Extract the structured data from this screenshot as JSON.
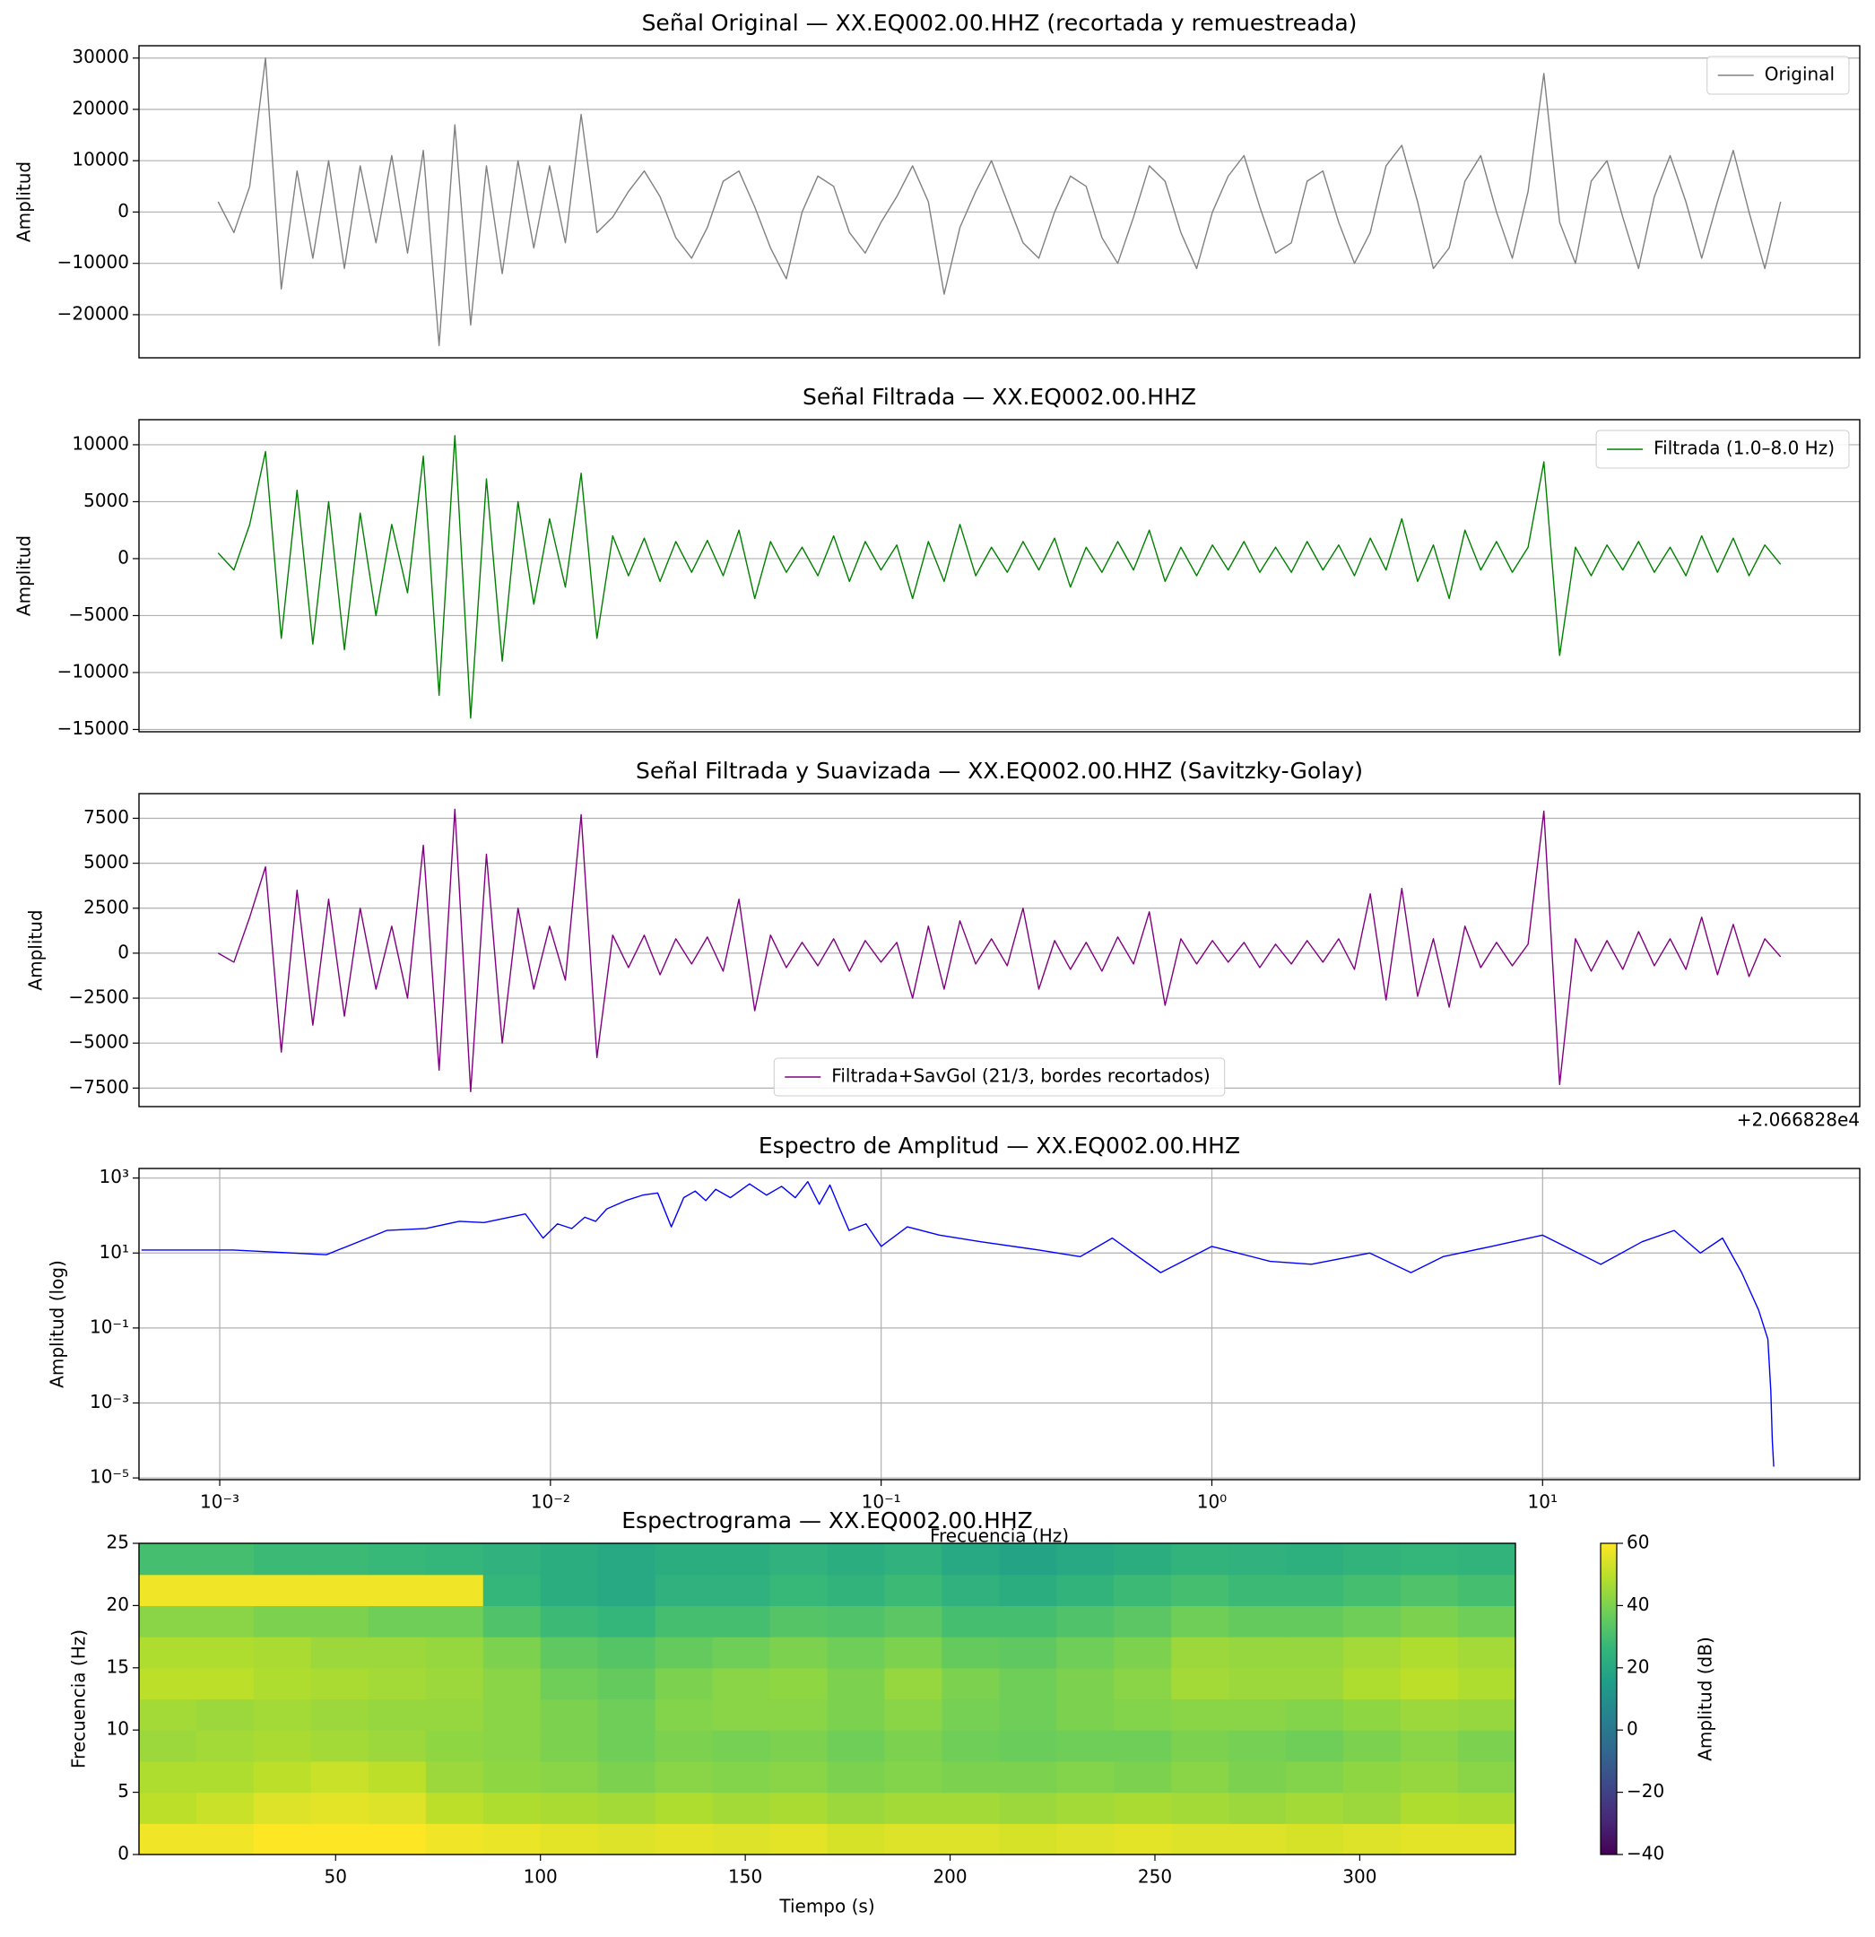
{
  "chart_data": [
    {
      "type": "line",
      "title": "Señal Original — XX.EQ002.00.HHZ (recortada y remuestreada)",
      "ylabel": "Amplitud",
      "ylim": [
        -28400,
        32400
      ],
      "yticks": [
        30000,
        20000,
        10000,
        0,
        {
          "value": -10000,
          "label": "−10000"
        },
        {
          "value": -20000,
          "label": "−20000"
        }
      ],
      "grid": true,
      "legend": "upper right",
      "series": [
        {
          "name": "Original",
          "color": "#808080",
          "values": [
            2000,
            -4000,
            5000,
            30000,
            -15000,
            8000,
            -9000,
            10000,
            -11000,
            9000,
            -6000,
            11000,
            -8000,
            12000,
            -26000,
            17000,
            -22000,
            9000,
            -12000,
            10000,
            -7000,
            9000,
            -6000,
            19000,
            -4000,
            -1000,
            4000,
            8000,
            3000,
            -5000,
            -9000,
            -3000,
            6000,
            8000,
            1000,
            -7000,
            -13000,
            0,
            7000,
            5000,
            -4000,
            -8000,
            -2000,
            3000,
            9000,
            2000,
            -16000,
            -3000,
            4000,
            10000,
            2000,
            -6000,
            -9000,
            0,
            7000,
            5000,
            -5000,
            -10000,
            -1000,
            9000,
            6000,
            -4000,
            -11000,
            0,
            7000,
            11000,
            1000,
            -8000,
            -6000,
            6000,
            8000,
            -2000,
            -10000,
            -4000,
            9000,
            13000,
            2000,
            -11000,
            -7000,
            6000,
            11000,
            0,
            -9000,
            4000,
            27000,
            -2000,
            -10000,
            6000,
            10000,
            -1000,
            -11000,
            3000,
            11000,
            2000,
            -9000,
            2000,
            12000,
            0,
            -11000,
            2000
          ]
        }
      ]
    },
    {
      "type": "line",
      "title": "Señal Filtrada — XX.EQ002.00.HHZ",
      "ylabel": "Amplitud",
      "ylim": [
        -15200,
        12200
      ],
      "yticks": [
        10000,
        5000,
        0,
        {
          "value": -5000,
          "label": "−5000"
        },
        {
          "value": -10000,
          "label": "−10000"
        },
        {
          "value": -15000,
          "label": "−15000"
        }
      ],
      "grid": true,
      "legend": "upper right",
      "series": [
        {
          "name": "Filtrada (1.0–8.0 Hz)",
          "color": "#008000",
          "values": [
            500,
            -1000,
            3000,
            9400,
            -7000,
            6000,
            -7500,
            5000,
            -8000,
            4000,
            -5000,
            3000,
            -3000,
            9000,
            -12000,
            10800,
            -14000,
            7000,
            -9000,
            5000,
            -4000,
            3500,
            -2500,
            7500,
            -7000,
            2000,
            -1500,
            1800,
            -2000,
            1500,
            -1200,
            1600,
            -1500,
            2500,
            -3500,
            1500,
            -1200,
            1000,
            -1500,
            2000,
            -2000,
            1500,
            -1000,
            1200,
            -3500,
            1500,
            -2000,
            3000,
            -1500,
            1000,
            -1200,
            1500,
            -1000,
            1800,
            -2500,
            1000,
            -1200,
            1500,
            -1000,
            2500,
            -2000,
            1000,
            -1500,
            1200,
            -1000,
            1500,
            -1200,
            1000,
            -1200,
            1500,
            -1000,
            1200,
            -1500,
            1800,
            -1000,
            3500,
            -2000,
            1200,
            -3500,
            2500,
            -1000,
            1500,
            -1200,
            1000,
            8500,
            -8500,
            1000,
            -1500,
            1200,
            -1000,
            1500,
            -1200,
            1000,
            -1500,
            2000,
            -1200,
            1800,
            -1500,
            1200,
            -500
          ]
        }
      ]
    },
    {
      "type": "line",
      "title": "Señal Filtrada y Suavizada — XX.EQ002.00.HHZ (Savitzky-Golay)",
      "ylabel": "Amplitud",
      "ylim": [
        -8530,
        8870
      ],
      "yticks": [
        7500,
        5000,
        2500,
        0,
        {
          "value": -2500,
          "label": "−2500"
        },
        {
          "value": -5000,
          "label": "−5000"
        },
        {
          "value": -7500,
          "label": "−7500"
        }
      ],
      "grid": true,
      "legend": "lower center",
      "offset_text": "+2.066828e4",
      "series": [
        {
          "name": "Filtrada+SavGol (21/3, bordes recortados)",
          "color": "#800080",
          "values": [
            0,
            -500,
            2000,
            4800,
            -5500,
            3500,
            -4000,
            3000,
            -3500,
            2500,
            -2000,
            1500,
            -2500,
            6000,
            -6500,
            8000,
            -7700,
            5500,
            -5000,
            2500,
            -2000,
            1500,
            -1500,
            7700,
            -5800,
            1000,
            -800,
            1000,
            -1200,
            800,
            -600,
            900,
            -1000,
            3000,
            -3200,
            1000,
            -800,
            600,
            -700,
            800,
            -1000,
            700,
            -500,
            600,
            -2500,
            1500,
            -2000,
            1800,
            -600,
            800,
            -700,
            2500,
            -2000,
            700,
            -900,
            600,
            -1000,
            900,
            -600,
            2300,
            -2900,
            800,
            -600,
            700,
            -500,
            600,
            -800,
            500,
            -600,
            700,
            -500,
            800,
            -900,
            3300,
            -2600,
            3600,
            -2400,
            800,
            -3000,
            1500,
            -800,
            600,
            -700,
            500,
            7900,
            -7300,
            800,
            -1000,
            700,
            -900,
            1200,
            -700,
            800,
            -900,
            2000,
            -1200,
            1600,
            -1300,
            800,
            -200
          ]
        }
      ]
    },
    {
      "type": "line",
      "title": "Espectro de Amplitud — XX.EQ002.00.HHZ",
      "ylabel": "Amplitud (log)",
      "xlabel": "Frecuencia (Hz)",
      "xscale": "log",
      "yscale": "log",
      "grid": true,
      "xlim": [
        0.00057,
        91
      ],
      "ylim": [
        9e-06,
        1800
      ],
      "xticks": [
        {
          "value": 0.001,
          "label": "10⁻³"
        },
        {
          "value": 0.01,
          "label": "10⁻²"
        },
        {
          "value": 0.1,
          "label": "10⁻¹"
        },
        {
          "value": 1,
          "label": "10⁰"
        },
        {
          "value": 10,
          "label": "10¹"
        }
      ],
      "yticks": [
        {
          "value": 1000,
          "label": "10³"
        },
        {
          "value": 10,
          "label": "10¹"
        },
        {
          "value": 0.1,
          "label": "10⁻¹"
        },
        {
          "value": 0.001,
          "label": "10⁻³"
        },
        {
          "value": 1e-05,
          "label": "10⁻⁵"
        }
      ],
      "x": [
        0.00058,
        0.0011,
        0.0021,
        0.0032,
        0.0042,
        0.0053,
        0.0063,
        0.0084,
        0.0095,
        0.0105,
        0.0116,
        0.0127,
        0.0137,
        0.0148,
        0.0169,
        0.019,
        0.0211,
        0.0232,
        0.0253,
        0.0274,
        0.0295,
        0.0316,
        0.035,
        0.04,
        0.045,
        0.05,
        0.055,
        0.06,
        0.065,
        0.07,
        0.075,
        0.08,
        0.09,
        0.1,
        0.12,
        0.15,
        0.2,
        0.3,
        0.4,
        0.5,
        0.7,
        1,
        1.5,
        2,
        3,
        4,
        5,
        7,
        10,
        15,
        20,
        25,
        30,
        35,
        40,
        45,
        48,
        49,
        49.5,
        50
      ],
      "series": [
        {
          "color": "#0000ff",
          "values": [
            12,
            12,
            9,
            40,
            45,
            70,
            65,
            110,
            25,
            60,
            45,
            90,
            70,
            150,
            250,
            350,
            400,
            50,
            300,
            450,
            250,
            500,
            300,
            700,
            350,
            600,
            300,
            800,
            200,
            650,
            150,
            40,
            60,
            15,
            50,
            30,
            20,
            12,
            8,
            25,
            3,
            15,
            6,
            5,
            10,
            3,
            8,
            15,
            30,
            5,
            20,
            40,
            10,
            25,
            3,
            0.3,
            0.05,
            0.002,
            0.0001,
            2e-05
          ]
        }
      ]
    },
    {
      "type": "heatmap",
      "title": "Espectrograma — XX.EQ002.00.HHZ",
      "xlabel": "Tiempo (s)",
      "ylabel": "Frecuencia (Hz)",
      "xlim": [
        2,
        338
      ],
      "ylim": [
        0,
        25
      ],
      "xticks": [
        50,
        100,
        150,
        200,
        250,
        300
      ],
      "yticks": [
        0,
        5,
        10,
        15,
        20,
        25
      ],
      "colormap": "viridis",
      "clim": [
        -40,
        60
      ],
      "clabel": "Amplitud (dB)",
      "cticks": [
        60,
        40,
        20,
        0,
        {
          "value": -20,
          "label": "−20"
        },
        {
          "value": -40,
          "label": "−40"
        }
      ],
      "x": [
        9,
        23,
        37,
        51,
        65,
        79,
        93,
        107,
        121,
        135,
        149,
        163,
        177,
        191,
        205,
        219,
        233,
        247,
        261,
        275,
        289,
        303,
        317,
        331
      ],
      "y": [
        1.25,
        3.75,
        6.25,
        8.75,
        11.25,
        13.75,
        16.25,
        18.75,
        21.25,
        23.75
      ],
      "z": [
        [
          58,
          58,
          60,
          60,
          60,
          58,
          57,
          56,
          55,
          56,
          55,
          56,
          54,
          55,
          55,
          54,
          55,
          56,
          55,
          55,
          54,
          55,
          56,
          56
        ],
        [
          50,
          52,
          55,
          56,
          55,
          50,
          48,
          47,
          46,
          48,
          46,
          47,
          45,
          46,
          46,
          45,
          46,
          47,
          46,
          45,
          46,
          45,
          48,
          47
        ],
        [
          48,
          48,
          50,
          52,
          50,
          45,
          43,
          42,
          40,
          42,
          41,
          42,
          40,
          41,
          40,
          40,
          41,
          40,
          42,
          40,
          41,
          43,
          44,
          42
        ],
        [
          45,
          46,
          47,
          46,
          45,
          43,
          42,
          40,
          38,
          40,
          39,
          40,
          38,
          40,
          38,
          37,
          38,
          38,
          40,
          39,
          38,
          40,
          42,
          40
        ],
        [
          46,
          45,
          46,
          45,
          44,
          44,
          42,
          40,
          38,
          41,
          42,
          42,
          40,
          42,
          39,
          38,
          40,
          41,
          42,
          42,
          41,
          43,
          45,
          44
        ],
        [
          50,
          50,
          48,
          47,
          46,
          45,
          42,
          38,
          36,
          40,
          42,
          43,
          40,
          44,
          40,
          38,
          40,
          42,
          46,
          45,
          45,
          48,
          50,
          48
        ],
        [
          48,
          48,
          47,
          45,
          45,
          44,
          40,
          35,
          33,
          36,
          38,
          40,
          38,
          40,
          36,
          35,
          38,
          40,
          45,
          44,
          44,
          46,
          48,
          46
        ],
        [
          42,
          42,
          40,
          40,
          38,
          38,
          32,
          28,
          26,
          30,
          30,
          33,
          32,
          34,
          30,
          30,
          32,
          34,
          38,
          36,
          36,
          38,
          40,
          38
        ],
        [
          58,
          58,
          58,
          58,
          58,
          58,
          26,
          22,
          20,
          24,
          24,
          27,
          25,
          28,
          24,
          22,
          25,
          28,
          30,
          28,
          28,
          30,
          32,
          30
        ],
        [
          30,
          30,
          28,
          28,
          27,
          26,
          24,
          22,
          20,
          22,
          22,
          24,
          22,
          24,
          20,
          18,
          20,
          22,
          25,
          24,
          23,
          25,
          26,
          25
        ]
      ]
    }
  ]
}
